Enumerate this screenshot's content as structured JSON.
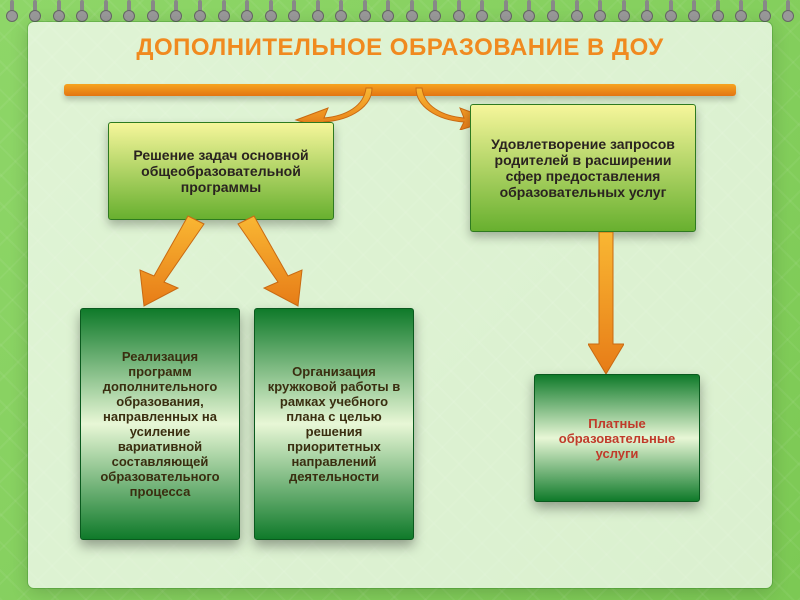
{
  "background": {
    "from": "#8ed668",
    "to": "#7cc954"
  },
  "spiral": {
    "count": 34
  },
  "title": {
    "text": "ДОПОЛНИТЕЛЬНОЕ ОБРАЗОВАНИЕ В ДОУ",
    "color": "#f08a1f",
    "fontsize": 24
  },
  "rule": {
    "from": "#f6a420",
    "to": "#e37512"
  },
  "arrow": {
    "fill_from": "#f9b733",
    "fill_to": "#e77c17",
    "stroke": "#c96a12"
  },
  "top_boxes": {
    "gradient": {
      "from": "#f6f69b",
      "to": "#68b02f"
    },
    "text_color": "#2a2320",
    "border": "#2e7a20",
    "fontsize": 14,
    "items": [
      {
        "id": "box1",
        "text": "Решение задач основной общеобразовательной программы"
      },
      {
        "id": "box2",
        "text": "Удовлетворение запросов родителей в расширении сфер предоставления образовательных услуг"
      }
    ]
  },
  "bottom_boxes": {
    "gradient": {
      "from": "#0f7a2a",
      "mid": "#e8f7d6",
      "to": "#0f7a2a"
    },
    "border": "#0a5a1e",
    "fontsize": 13,
    "items": [
      {
        "id": "bbox1",
        "text": "Реализация программ дополнительного образования, направленных на усиление вариативной составляющей образовательного процесса",
        "text_color": "#3a2e10"
      },
      {
        "id": "bbox2",
        "text": "Организация кружковой работы в рамках учебного плана с целью решения приоритетных направлений деятельности",
        "text_color": "#3a2e10"
      },
      {
        "id": "bbox3",
        "text": "Платные образовательные услуги",
        "text_color": "#c03a2a"
      }
    ]
  }
}
